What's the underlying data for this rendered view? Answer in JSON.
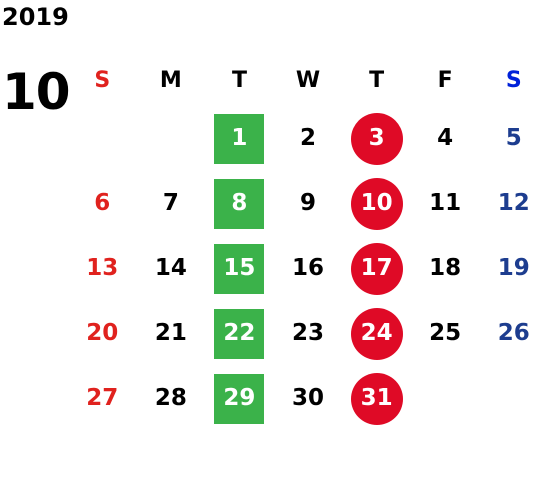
{
  "year": "2019",
  "month": "10",
  "weekdays": [
    "S",
    "M",
    "T",
    "W",
    "T",
    "F",
    "S"
  ],
  "weeks": [
    [
      "",
      "",
      "1",
      "2",
      "3",
      "4",
      "5"
    ],
    [
      "6",
      "7",
      "8",
      "9",
      "10",
      "11",
      "12"
    ],
    [
      "13",
      "14",
      "15",
      "16",
      "17",
      "18",
      "19"
    ],
    [
      "20",
      "21",
      "22",
      "23",
      "24",
      "25",
      "26"
    ],
    [
      "27",
      "28",
      "29",
      "30",
      "31",
      "",
      ""
    ]
  ],
  "colors": {
    "sunday": "#e0221e",
    "saturday": "#1d3d8f",
    "tuesday_highlight": "#3bb24a",
    "thursday_highlight": "#df0a26"
  }
}
